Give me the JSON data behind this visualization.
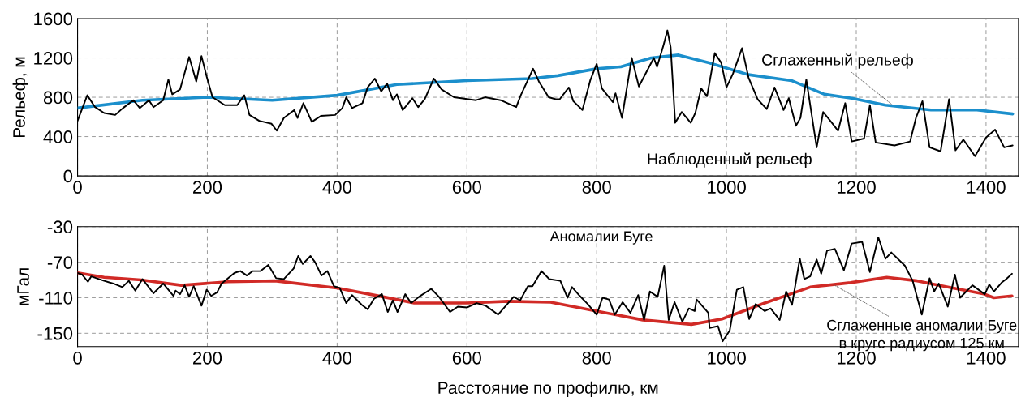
{
  "chart_data": [
    {
      "type": "line",
      "ylabel": "Рельеф, м",
      "xlim": [
        0,
        1450
      ],
      "ylim": [
        0,
        1600
      ],
      "xticks": [
        0,
        200,
        400,
        600,
        800,
        1000,
        1200,
        1400
      ],
      "yticks": [
        0,
        400,
        800,
        1200,
        1600
      ],
      "grid": true,
      "legend": false,
      "line_style": "solid",
      "series": [
        {
          "color": "#000000",
          "x": [
            0,
            15,
            27,
            41,
            58,
            70,
            86,
            96,
            110,
            117,
            132,
            140,
            146,
            158,
            172,
            183,
            191,
            199,
            208,
            227,
            246,
            257,
            265,
            280,
            299,
            307,
            318,
            334,
            339,
            348,
            361,
            375,
            397,
            408,
            414,
            423,
            439,
            447,
            458,
            468,
            477,
            486,
            492,
            501,
            516,
            525,
            535,
            549,
            561,
            580,
            614,
            628,
            652,
            676,
            683,
            702,
            711,
            726,
            737,
            743,
            757,
            764,
            778,
            790,
            800,
            808,
            825,
            829,
            839,
            854,
            865,
            888,
            893,
            903,
            909,
            914,
            921,
            931,
            945,
            952,
            961,
            970,
            982,
            992,
            1000,
            1010,
            1024,
            1034,
            1048,
            1062,
            1074,
            1088,
            1096,
            1107,
            1114,
            1123,
            1139,
            1149,
            1160,
            1172,
            1183,
            1193,
            1212,
            1221,
            1230,
            1259,
            1283,
            1292,
            1302,
            1313,
            1330,
            1343,
            1353,
            1365,
            1383,
            1400,
            1414,
            1428,
            1441
          ],
          "values": [
            560,
            820,
            700,
            640,
            620,
            690,
            770,
            690,
            770,
            700,
            770,
            980,
            830,
            880,
            1210,
            960,
            1220,
            1010,
            800,
            720,
            720,
            820,
            620,
            560,
            530,
            460,
            590,
            670,
            590,
            740,
            550,
            610,
            620,
            690,
            800,
            690,
            740,
            900,
            990,
            860,
            940,
            770,
            830,
            670,
            790,
            700,
            780,
            990,
            880,
            800,
            770,
            800,
            770,
            700,
            820,
            1090,
            960,
            800,
            780,
            780,
            900,
            760,
            670,
            970,
            1140,
            890,
            750,
            840,
            590,
            1200,
            910,
            1200,
            1110,
            1330,
            1480,
            1310,
            540,
            650,
            540,
            640,
            890,
            810,
            1250,
            1150,
            900,
            1040,
            1300,
            1000,
            780,
            680,
            900,
            670,
            790,
            510,
            590,
            980,
            290,
            650,
            560,
            460,
            740,
            350,
            380,
            720,
            340,
            310,
            350,
            590,
            760,
            290,
            250,
            780,
            260,
            370,
            200,
            390,
            470,
            290,
            310
          ]
        },
        {
          "color": "#1b8fcc",
          "x": [
            0,
            100,
            200,
            300,
            400,
            492,
            600,
            700,
            740,
            800,
            837,
            884,
            926,
            973,
            1034,
            1100,
            1151,
            1193,
            1245,
            1315,
            1386,
            1441
          ],
          "values": [
            690,
            770,
            800,
            770,
            820,
            930,
            970,
            990,
            1020,
            1090,
            1110,
            1200,
            1230,
            1150,
            1030,
            970,
            830,
            790,
            720,
            670,
            670,
            630
          ]
        }
      ],
      "annotations": [
        {
          "text": "Сглаженный рельеф",
          "x": 1258,
          "y": 710
        },
        "Наблюденный рельеф"
      ]
    },
    {
      "type": "line",
      "ylabel": "мГал",
      "xlabel": "Расстояние по профилю, км",
      "xlim": [
        0,
        1450
      ],
      "ylim": [
        -165,
        -30
      ],
      "xticks": [
        0,
        200,
        400,
        600,
        800,
        1000,
        1200,
        1400
      ],
      "yticks": [
        {
          "value": -30,
          "label": "-30"
        },
        {
          "value": -70,
          "label": "-70"
        },
        {
          "value": -110,
          "label": "-110"
        },
        {
          "value": -150,
          "label": "-150"
        }
      ],
      "grid": true,
      "legend": false,
      "line_style": "solid",
      "series": [
        {
          "color": "#000000",
          "x": [
            0,
            7,
            16,
            21,
            41,
            55,
            69,
            79,
            89,
            100,
            117,
            132,
            148,
            151,
            158,
            165,
            172,
            179,
            191,
            199,
            206,
            215,
            222,
            242,
            251,
            261,
            270,
            282,
            294,
            306,
            318,
            333,
            340,
            347,
            359,
            366,
            376,
            385,
            395,
            404,
            414,
            423,
            438,
            447,
            457,
            469,
            478,
            486,
            493,
            505,
            514,
            526,
            545,
            557,
            574,
            586,
            600,
            615,
            629,
            648,
            672,
            682,
            694,
            701,
            715,
            727,
            744,
            755,
            762,
            774,
            786,
            800,
            809,
            819,
            828,
            840,
            852,
            864,
            873,
            882,
            894,
            904,
            911,
            920,
            932,
            942,
            951,
            954,
            972,
            974,
            987,
            994,
            1005,
            1016,
            1026,
            1035,
            1045,
            1059,
            1068,
            1082,
            1092,
            1101,
            1113,
            1120,
            1129,
            1139,
            1146,
            1155,
            1167,
            1181,
            1193,
            1209,
            1221,
            1234,
            1245,
            1254,
            1275,
            1287,
            1301,
            1313,
            1320,
            1327,
            1341,
            1352,
            1360,
            1379,
            1398,
            1405,
            1412,
            1424,
            1431,
            1440
          ],
          "values": [
            -82,
            -84,
            -92,
            -86,
            -91,
            -94,
            -98,
            -91,
            -102,
            -89,
            -105,
            -94,
            -108,
            -102,
            -106,
            -96,
            -109,
            -97,
            -119,
            -101,
            -108,
            -104,
            -94,
            -82,
            -80,
            -85,
            -80,
            -80,
            -73,
            -88,
            -89,
            -77,
            -63,
            -72,
            -63,
            -70,
            -85,
            -80,
            -97,
            -99,
            -116,
            -107,
            -118,
            -123,
            -111,
            -106,
            -126,
            -113,
            -126,
            -106,
            -116,
            -109,
            -100,
            -109,
            -126,
            -120,
            -121,
            -116,
            -119,
            -129,
            -109,
            -113,
            -97,
            -97,
            -80,
            -89,
            -91,
            -110,
            -98,
            -108,
            -117,
            -129,
            -110,
            -112,
            -129,
            -115,
            -127,
            -107,
            -135,
            -103,
            -109,
            -74,
            -135,
            -115,
            -137,
            -122,
            -125,
            -112,
            -127,
            -144,
            -142,
            -159,
            -147,
            -101,
            -98,
            -134,
            -117,
            -125,
            -122,
            -135,
            -103,
            -118,
            -66,
            -89,
            -86,
            -67,
            -83,
            -57,
            -55,
            -79,
            -49,
            -47,
            -81,
            -42,
            -66,
            -59,
            -74,
            -91,
            -129,
            -88,
            -103,
            -94,
            -120,
            -84,
            -110,
            -96,
            -106,
            -95,
            -103,
            -93,
            -89,
            -83
          ]
        },
        {
          "color": "#d12a26",
          "x": [
            0,
            41,
            98,
            160,
            232,
            304,
            328,
            400,
            471,
            519,
            600,
            663,
            729,
            800,
            871,
            946,
            993,
            1059,
            1129,
            1191,
            1247,
            1294,
            1341,
            1398,
            1412,
            1440
          ],
          "values": [
            -82,
            -87,
            -90,
            -96,
            -92,
            -91,
            -93,
            -99,
            -109,
            -116,
            -116,
            -114,
            -115,
            -125,
            -135,
            -140,
            -134,
            -116,
            -98,
            -93,
            -87,
            -91,
            -98,
            -106,
            -110,
            -108
          ]
        }
      ],
      "annotations": [
        {
          "text": "Аномалии Буге",
          "x": 904,
          "y": -74
        },
        {
          "text": "Сглаженные аномалии Буге\nв круге радиусом 125 км",
          "x": 1162,
          "y": -94
        }
      ]
    }
  ]
}
